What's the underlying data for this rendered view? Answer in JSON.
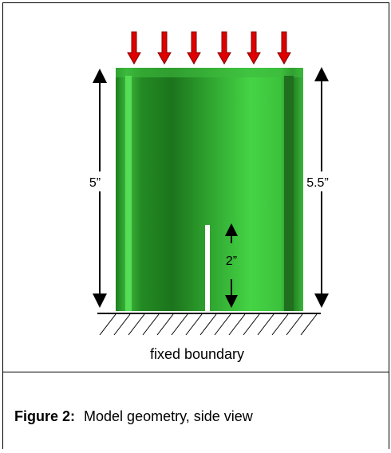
{
  "figure": {
    "labels": {
      "left_height": "5”",
      "right_height": "5.5”",
      "slot_height": "2”"
    },
    "boundary_label": "fixed boundary"
  },
  "caption": {
    "number": "Figure 2:",
    "text": "Model geometry, side view"
  }
}
